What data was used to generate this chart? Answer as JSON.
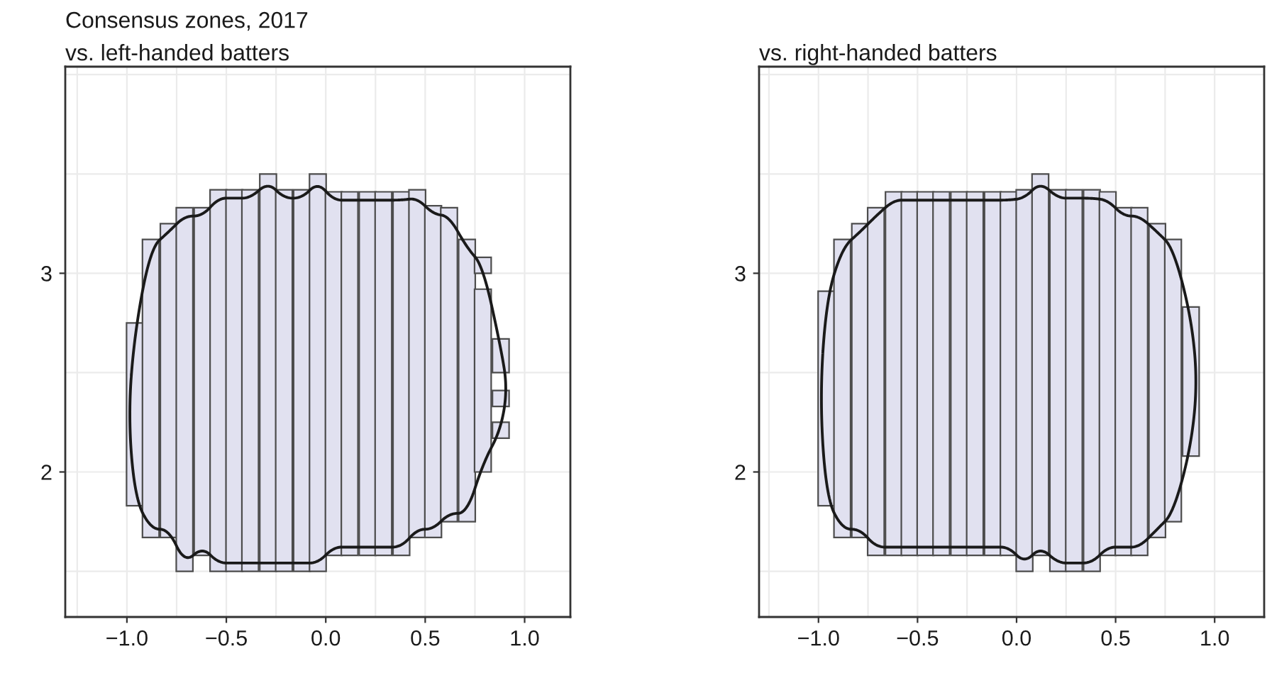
{
  "chart_data": [
    {
      "type": "bar",
      "title": "Consensus zones, 2017",
      "subtitle": "vs. left-handed batters",
      "x": [
        -0.96,
        -0.88,
        -0.79,
        -0.71,
        -0.62,
        -0.54,
        -0.46,
        -0.38,
        -0.29,
        -0.21,
        -0.12,
        -0.04,
        0.04,
        0.12,
        0.21,
        0.29,
        0.38,
        0.46,
        0.54,
        0.62,
        0.71,
        0.79,
        0.88
      ],
      "series": [
        {
          "color": "#e1e1f0",
          "base": [
            1.83,
            1.67,
            1.67,
            1.5,
            1.58,
            1.5,
            1.5,
            1.5,
            1.5,
            1.5,
            1.5,
            1.5,
            1.58,
            1.58,
            1.58,
            1.58,
            1.58,
            1.67,
            1.67,
            1.75,
            1.75,
            2.0,
            2.5
          ],
          "values": [
            0.92,
            1.5,
            1.58,
            1.83,
            1.75,
            1.92,
            1.92,
            1.92,
            2.0,
            1.92,
            1.92,
            2.0,
            1.83,
            1.83,
            1.83,
            1.83,
            1.83,
            1.75,
            1.67,
            1.58,
            1.42,
            0.92,
            0.17
          ]
        },
        {
          "color": "#e1e1f0",
          "base": [
            null,
            null,
            null,
            null,
            null,
            null,
            null,
            null,
            null,
            null,
            null,
            null,
            null,
            null,
            null,
            null,
            null,
            null,
            null,
            null,
            null,
            3.0,
            2.33
          ],
          "values": [
            null,
            null,
            null,
            null,
            null,
            null,
            null,
            null,
            null,
            null,
            null,
            null,
            null,
            null,
            null,
            null,
            null,
            null,
            null,
            null,
            null,
            0.08,
            0.08
          ]
        },
        {
          "color": "#e1e1f0",
          "base": [
            null,
            null,
            null,
            null,
            null,
            null,
            null,
            null,
            null,
            null,
            null,
            null,
            null,
            null,
            null,
            null,
            null,
            null,
            null,
            null,
            null,
            null,
            2.17
          ],
          "values": [
            null,
            null,
            null,
            null,
            null,
            null,
            null,
            null,
            null,
            null,
            null,
            null,
            null,
            null,
            null,
            null,
            null,
            null,
            null,
            null,
            null,
            null,
            0.08
          ]
        }
      ],
      "xlim": [
        -1.31,
        1.23
      ],
      "ylim": [
        1.27,
        4.04
      ],
      "xticks": [
        {
          "value": -1.0,
          "label": "−1.0"
        },
        {
          "value": -0.5,
          "label": "−0.5"
        },
        {
          "value": 0.0,
          "label": "0.0"
        },
        {
          "value": 0.5,
          "label": "0.5"
        },
        {
          "value": 1.0,
          "label": "1.0"
        }
      ],
      "yticks": [
        2,
        3
      ],
      "grid": true
    },
    {
      "type": "bar",
      "subtitle": "vs. right-handed batters",
      "x": [
        -0.96,
        -0.88,
        -0.79,
        -0.71,
        -0.62,
        -0.54,
        -0.46,
        -0.38,
        -0.29,
        -0.21,
        -0.12,
        -0.04,
        0.04,
        0.12,
        0.21,
        0.29,
        0.38,
        0.46,
        0.54,
        0.62,
        0.71,
        0.79,
        0.88
      ],
      "series": [
        {
          "color": "#e1e1f0",
          "base": [
            1.83,
            1.67,
            1.67,
            1.58,
            1.58,
            1.58,
            1.58,
            1.58,
            1.58,
            1.58,
            1.58,
            1.58,
            1.5,
            1.58,
            1.5,
            1.5,
            1.5,
            1.58,
            1.58,
            1.58,
            1.67,
            1.75,
            2.08
          ],
          "values": [
            1.08,
            1.5,
            1.58,
            1.75,
            1.83,
            1.83,
            1.83,
            1.83,
            1.83,
            1.83,
            1.83,
            1.83,
            1.92,
            1.92,
            1.92,
            1.92,
            1.92,
            1.83,
            1.75,
            1.75,
            1.58,
            1.42,
            0.75
          ]
        }
      ],
      "xlim": [
        -1.3,
        1.25
      ],
      "ylim": [
        1.27,
        4.04
      ],
      "xticks": [
        {
          "value": -1.0,
          "label": "−1.0"
        },
        {
          "value": -0.5,
          "label": "−0.5"
        },
        {
          "value": 0.0,
          "label": "0.0"
        },
        {
          "value": 0.5,
          "label": "0.5"
        },
        {
          "value": 1.0,
          "label": "1.0"
        }
      ],
      "yticks": [
        2,
        3
      ],
      "grid": true
    }
  ]
}
